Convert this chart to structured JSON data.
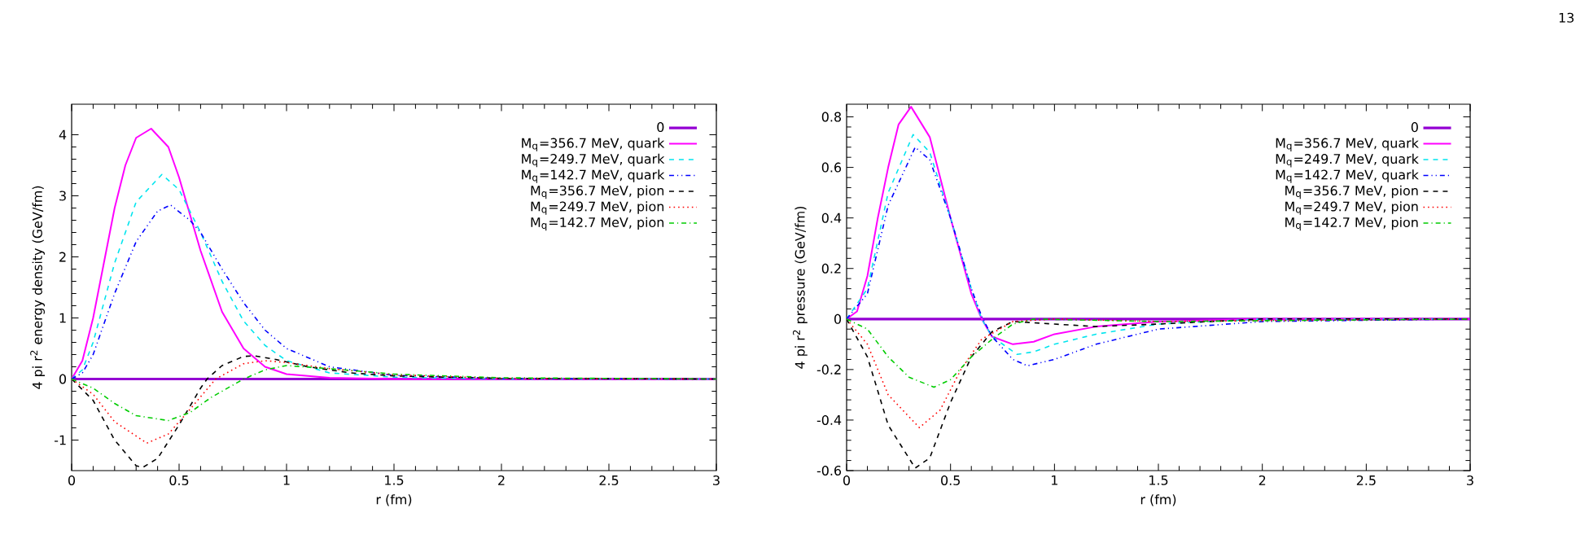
{
  "chart_data": [
    {
      "type": "line",
      "xlabel": "r (fm)",
      "ylabel": "4 pi r$^{2}$ energy density (GeV/fm)",
      "xlim": [
        0,
        3
      ],
      "ylim": [
        -1.5,
        4.5
      ],
      "xticks": [
        0,
        0.5,
        1,
        1.5,
        2,
        2.5,
        3
      ],
      "yticks": [
        -1,
        0,
        1,
        2,
        3,
        4
      ],
      "legend": "top right",
      "grid": false,
      "series": [
        {
          "name": "0",
          "color": "#9400d3",
          "line_style": "solid",
          "x": [
            0,
            3
          ],
          "values": [
            0,
            0
          ]
        },
        {
          "name": "M$_{q}$=356.7 MeV, quark",
          "color": "#ff00ff",
          "line_style": "solid",
          "x": [
            0,
            0.05,
            0.1,
            0.15,
            0.2,
            0.25,
            0.3,
            0.37,
            0.45,
            0.5,
            0.6,
            0.7,
            0.8,
            0.9,
            1.0,
            1.2,
            1.5,
            3
          ],
          "values": [
            0,
            0.3,
            1.0,
            1.9,
            2.8,
            3.5,
            3.95,
            4.1,
            3.8,
            3.3,
            2.1,
            1.1,
            0.5,
            0.2,
            0.08,
            0.02,
            0,
            0
          ]
        },
        {
          "name": "M$_{q}$=249.7 MeV, quark",
          "color": "#00e5ee",
          "line_style": "dashed",
          "x": [
            0,
            0.05,
            0.1,
            0.2,
            0.3,
            0.42,
            0.5,
            0.6,
            0.7,
            0.8,
            0.9,
            1.0,
            1.2,
            1.5,
            2,
            3
          ],
          "values": [
            0,
            0.15,
            0.6,
            1.9,
            2.9,
            3.35,
            3.1,
            2.4,
            1.6,
            0.95,
            0.55,
            0.3,
            0.1,
            0.03,
            0,
            0
          ]
        },
        {
          "name": "M$_{q}$=142.7 MeV, quark",
          "color": "#0000ff",
          "line_style": "dashdotdotted",
          "x": [
            0,
            0.05,
            0.1,
            0.2,
            0.3,
            0.4,
            0.46,
            0.55,
            0.6,
            0.7,
            0.8,
            0.9,
            1.0,
            1.2,
            1.5,
            2,
            3
          ],
          "values": [
            0,
            0.1,
            0.4,
            1.4,
            2.25,
            2.75,
            2.85,
            2.6,
            2.4,
            1.8,
            1.25,
            0.8,
            0.5,
            0.2,
            0.06,
            0.01,
            0
          ]
        },
        {
          "name": "M$_{q}$=356.7 MeV, pion",
          "color": "#000000",
          "line_style": "dashed",
          "x": [
            0,
            0.1,
            0.2,
            0.3,
            0.33,
            0.4,
            0.5,
            0.6,
            0.63,
            0.7,
            0.8,
            0.85,
            0.95,
            1.1,
            1.3,
            1.5,
            2,
            3
          ],
          "values": [
            0,
            -0.35,
            -1.0,
            -1.42,
            -1.45,
            -1.3,
            -0.75,
            -0.15,
            0,
            0.22,
            0.37,
            0.38,
            0.32,
            0.2,
            0.1,
            0.05,
            0.01,
            0
          ]
        },
        {
          "name": "M$_{q}$=249.7 MeV, pion",
          "color": "#ff0000",
          "line_style": "dotted",
          "x": [
            0,
            0.1,
            0.2,
            0.35,
            0.45,
            0.55,
            0.67,
            0.8,
            0.9,
            1.0,
            1.2,
            1.5,
            2,
            3
          ],
          "values": [
            0,
            -0.25,
            -0.7,
            -1.05,
            -0.9,
            -0.5,
            0,
            0.25,
            0.3,
            0.27,
            0.17,
            0.07,
            0.01,
            0
          ]
        },
        {
          "name": "M$_{q}$=142.7 MeV, pion",
          "color": "#00cc00",
          "line_style": "dashdotted",
          "x": [
            0,
            0.1,
            0.2,
            0.3,
            0.45,
            0.55,
            0.65,
            0.8,
            0.9,
            1.0,
            1.2,
            1.5,
            2,
            3
          ],
          "values": [
            0,
            -0.15,
            -0.4,
            -0.6,
            -0.68,
            -0.55,
            -0.3,
            0,
            0.15,
            0.22,
            0.17,
            0.08,
            0.02,
            0
          ]
        }
      ]
    },
    {
      "type": "line",
      "xlabel": "r (fm)",
      "ylabel": "4 pi r$^{2}$ pressure (GeV/fm)",
      "xlim": [
        0,
        3
      ],
      "ylim": [
        -0.6,
        0.85
      ],
      "xticks": [
        0,
        0.5,
        1,
        1.5,
        2,
        2.5,
        3
      ],
      "yticks": [
        -0.6,
        -0.4,
        -0.2,
        0,
        0.2,
        0.4,
        0.6,
        0.8
      ],
      "legend": "top right",
      "grid": false,
      "annotations": [
        "13"
      ],
      "series": [
        {
          "name": "0",
          "color": "#9400d3",
          "line_style": "solid",
          "x": [
            0,
            3
          ],
          "values": [
            0,
            0
          ]
        },
        {
          "name": "M$_{q}$=356.7 MeV, quark",
          "color": "#ff00ff",
          "line_style": "solid",
          "x": [
            0,
            0.05,
            0.1,
            0.15,
            0.2,
            0.25,
            0.31,
            0.4,
            0.5,
            0.6,
            0.65,
            0.7,
            0.8,
            0.9,
            1.0,
            1.2,
            1.5,
            2,
            3
          ],
          "values": [
            0,
            0.03,
            0.17,
            0.4,
            0.6,
            0.77,
            0.84,
            0.72,
            0.4,
            0.1,
            0,
            -0.07,
            -0.1,
            -0.09,
            -0.06,
            -0.03,
            -0.01,
            0,
            0
          ]
        },
        {
          "name": "M$_{q}$=249.7 MeV, quark",
          "color": "#00e5ee",
          "line_style": "dashed",
          "x": [
            0,
            0.1,
            0.2,
            0.32,
            0.4,
            0.5,
            0.6,
            0.65,
            0.7,
            0.82,
            0.9,
            1.0,
            1.2,
            1.5,
            2,
            3
          ],
          "values": [
            0,
            0.12,
            0.5,
            0.73,
            0.66,
            0.4,
            0.12,
            0,
            -0.07,
            -0.14,
            -0.13,
            -0.1,
            -0.06,
            -0.02,
            0,
            0
          ]
        },
        {
          "name": "M$_{q}$=142.7 MeV, quark",
          "color": "#0000ff",
          "line_style": "dashdotdotted",
          "x": [
            0,
            0.1,
            0.2,
            0.33,
            0.4,
            0.5,
            0.6,
            0.65,
            0.7,
            0.8,
            0.87,
            1.0,
            1.2,
            1.5,
            2,
            3
          ],
          "values": [
            0,
            0.1,
            0.45,
            0.68,
            0.63,
            0.4,
            0.12,
            0.01,
            -0.07,
            -0.16,
            -0.185,
            -0.16,
            -0.1,
            -0.04,
            -0.01,
            0
          ]
        },
        {
          "name": "M$_{q}$=356.7 MeV, pion",
          "color": "#000000",
          "line_style": "dashed",
          "x": [
            0,
            0.1,
            0.2,
            0.33,
            0.4,
            0.5,
            0.6,
            0.7,
            0.8,
            1.0,
            1.2,
            1.5,
            2,
            3
          ],
          "values": [
            0,
            -0.15,
            -0.42,
            -0.59,
            -0.55,
            -0.33,
            -0.15,
            -0.05,
            -0.01,
            -0.02,
            -0.03,
            -0.02,
            0,
            0
          ]
        },
        {
          "name": "M$_{q}$=249.7 MeV, pion",
          "color": "#ff0000",
          "line_style": "dotted",
          "x": [
            0,
            0.1,
            0.2,
            0.35,
            0.45,
            0.55,
            0.65,
            0.8,
            1.0,
            1.5,
            3
          ],
          "values": [
            0,
            -0.1,
            -0.3,
            -0.43,
            -0.36,
            -0.2,
            -0.08,
            -0.01,
            0,
            -0.01,
            0
          ]
        },
        {
          "name": "M$_{q}$=142.7 MeV, pion",
          "color": "#00cc00",
          "line_style": "dashdotted",
          "x": [
            0,
            0.1,
            0.2,
            0.3,
            0.42,
            0.5,
            0.6,
            0.7,
            0.8,
            0.9,
            1.5,
            3
          ],
          "values": [
            0,
            -0.04,
            -0.15,
            -0.23,
            -0.27,
            -0.24,
            -0.15,
            -0.08,
            -0.02,
            0,
            -0.01,
            0
          ]
        }
      ]
    }
  ]
}
